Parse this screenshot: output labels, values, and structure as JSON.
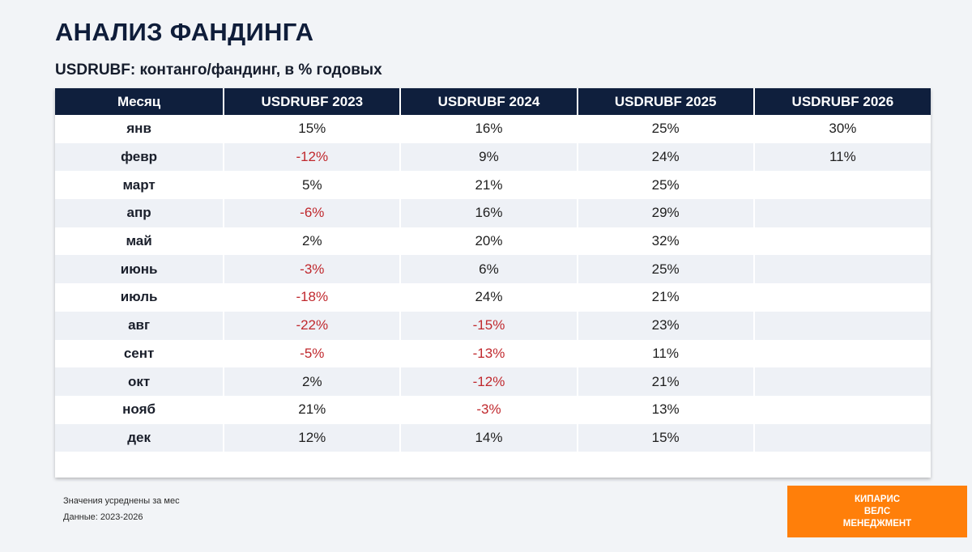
{
  "title": "АНАЛИЗ ФАНДИНГА",
  "subtitle": "USDRUBF: контанго/фандинг, в % годовых",
  "table": {
    "headers": [
      "Месяц",
      "USDRUBF 2023",
      "USDRUBF 2024",
      "USDRUBF 2025",
      "USDRUBF 2026"
    ],
    "rows": [
      [
        "янв",
        "15%",
        "16%",
        "25%",
        "30%"
      ],
      [
        "февр",
        "-12%",
        "9%",
        "24%",
        "11%"
      ],
      [
        "март",
        "5%",
        "21%",
        "25%",
        ""
      ],
      [
        "апр",
        "-6%",
        "16%",
        "29%",
        ""
      ],
      [
        "май",
        "2%",
        "20%",
        "32%",
        ""
      ],
      [
        "июнь",
        "-3%",
        "6%",
        "25%",
        ""
      ],
      [
        "июль",
        "-18%",
        "24%",
        "21%",
        ""
      ],
      [
        "авг",
        "-22%",
        "-15%",
        "23%",
        ""
      ],
      [
        "сент",
        "-5%",
        "-13%",
        "11%",
        ""
      ],
      [
        "окт",
        "2%",
        "-12%",
        "21%",
        ""
      ],
      [
        "нояб",
        "21%",
        "-3%",
        "13%",
        ""
      ],
      [
        "дек",
        "12%",
        "14%",
        "15%",
        ""
      ]
    ]
  },
  "footnotes": {
    "line1": "Значения усреднены за мес",
    "line2": "Данные: 2023-2026"
  },
  "brand": {
    "line1": "КИПАРИС",
    "line2": "ВЕЛС",
    "line3": "МЕНЕДЖМЕНТ"
  },
  "colors": {
    "header_bg": "#0f1f3d",
    "negative": "#c0282d",
    "brand_bg": "#ff7f0a"
  }
}
